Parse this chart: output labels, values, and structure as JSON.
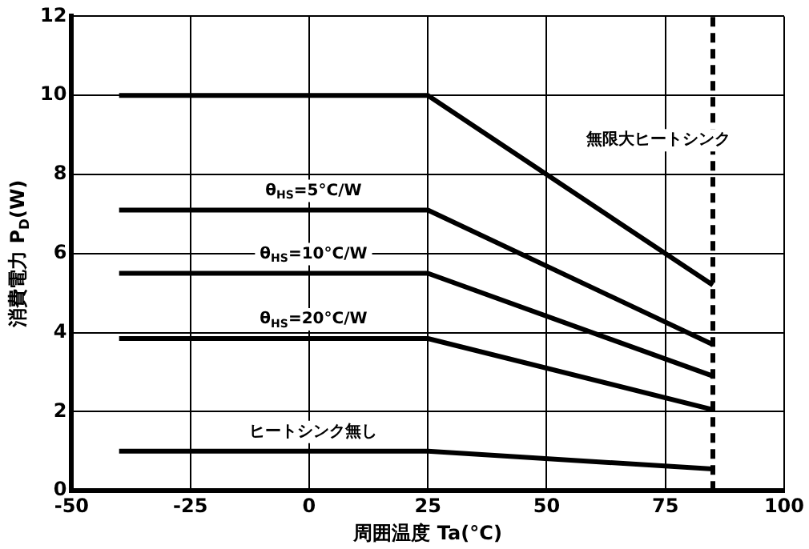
{
  "chart_data": {
    "type": "line",
    "xlabel": "周囲温度 Ta(°C)",
    "ylabel": "消費電力 P$_{D}$(W)",
    "x": [
      -40,
      25,
      85
    ],
    "series": [
      {
        "name": "無限大ヒートシンク",
        "color": "#000000",
        "values": [
          10,
          10,
          5.2
        ]
      },
      {
        "name": "θ$_{HS}$=5°C/W",
        "color": "#000000",
        "values": [
          7.1,
          7.1,
          3.7
        ]
      },
      {
        "name": "θ$_{HS}$=10°C/W",
        "color": "#000000",
        "values": [
          5.5,
          5.5,
          2.9
        ]
      },
      {
        "name": "θ$_{HS}$=20°C/W",
        "color": "#000000",
        "values": [
          3.85,
          3.85,
          2.05
        ]
      },
      {
        "name": "ヒートシンク無し",
        "color": "#000000",
        "values": [
          1.0,
          1.0,
          0.55
        ]
      }
    ],
    "xlim": [
      -50,
      100
    ],
    "xticks": [
      -50,
      -25,
      0,
      25,
      50,
      75,
      100
    ],
    "ylim": [
      0,
      12
    ],
    "yticks": [
      0,
      2,
      4,
      6,
      8,
      10,
      12
    ],
    "ref_lines": [
      {
        "axis": "x",
        "value": 85,
        "color": "#000000",
        "line_style": "dashed"
      }
    ],
    "grid": true,
    "legend": false,
    "marker": "none",
    "line_style": "solid"
  }
}
